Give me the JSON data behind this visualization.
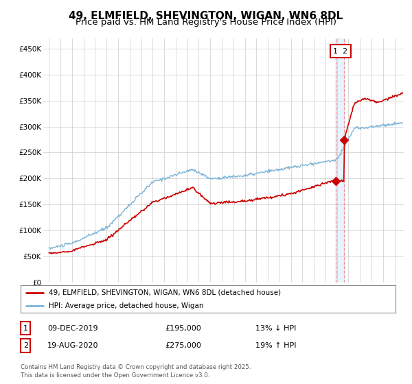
{
  "title": "49, ELMFIELD, SHEVINGTON, WIGAN, WN6 8DL",
  "subtitle": "Price paid vs. HM Land Registry's House Price Index (HPI)",
  "ylabel_ticks": [
    "£0",
    "£50K",
    "£100K",
    "£150K",
    "£200K",
    "£250K",
    "£300K",
    "£350K",
    "£400K",
    "£450K"
  ],
  "ytick_values": [
    0,
    50000,
    100000,
    150000,
    200000,
    250000,
    300000,
    350000,
    400000,
    450000
  ],
  "ylim": [
    0,
    470000
  ],
  "xlim_start": 1994.5,
  "xlim_end": 2025.8,
  "hpi_color": "#7ab4d8",
  "price_color": "#cc0000",
  "marker1_date": 2019.92,
  "marker1_price": 195000,
  "marker2_date": 2020.63,
  "marker2_price": 275000,
  "legend_line1": "49, ELMFIELD, SHEVINGTON, WIGAN, WN6 8DL (detached house)",
  "legend_line2": "HPI: Average price, detached house, Wigan",
  "table_row1": [
    "1",
    "09-DEC-2019",
    "£195,000",
    "13% ↓ HPI"
  ],
  "table_row2": [
    "2",
    "19-AUG-2020",
    "£275,000",
    "19% ↑ HPI"
  ],
  "footnote": "Contains HM Land Registry data © Crown copyright and database right 2025.\nThis data is licensed under the Open Government Licence v3.0.",
  "background_color": "#ffffff",
  "grid_color": "#cccccc",
  "title_fontsize": 11,
  "subtitle_fontsize": 9.5,
  "axis_fontsize": 7.5
}
